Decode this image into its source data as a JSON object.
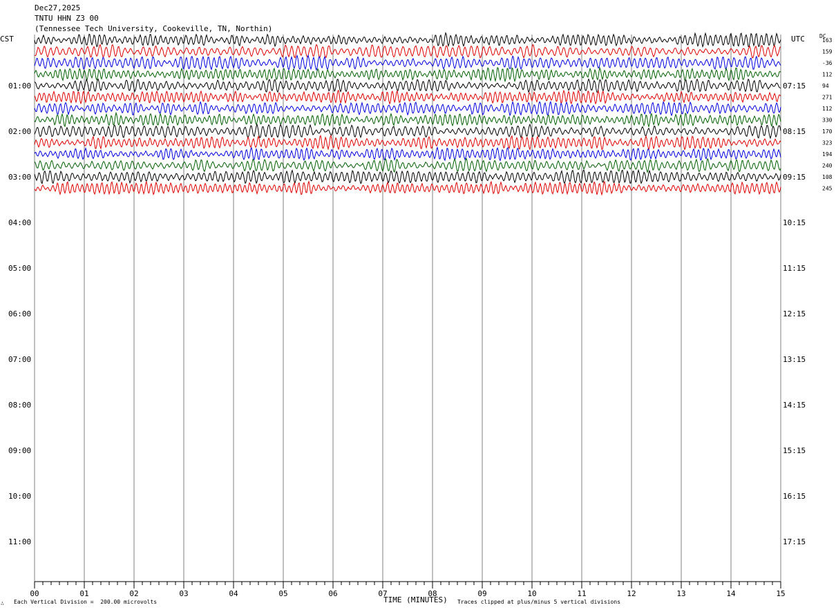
{
  "header": {
    "date": "Dec27,2025",
    "station": "TNTU HHN Z3 00",
    "location": "(Tennessee Tech University, Cookeville, TN, Northin)"
  },
  "labels": {
    "left_zone": "CST",
    "right_zone": "UTC",
    "dc_header": "DC",
    "x_axis_title": "TIME (MINUTES)",
    "scale_note": "Each Vertical Division =  200.00 microvolts",
    "clip_note": "Traces clipped at plus/minus 5 vertical divisions",
    "corner_mark": "∴"
  },
  "colors": {
    "trace_cycle": [
      "#000000",
      "#e00000",
      "#0000e0",
      "#006000"
    ],
    "grid": "#808080",
    "axis": "#000000"
  },
  "chart_data": {
    "type": "line",
    "title": "TNTU HHN Z3 00",
    "xlabel": "TIME (MINUTES)",
    "xlim": [
      0,
      15
    ],
    "x_ticks": [
      "00",
      "01",
      "02",
      "03",
      "04",
      "05",
      "06",
      "07",
      "08",
      "09",
      "10",
      "11",
      "12",
      "13",
      "14",
      "15"
    ],
    "left_hour_labels": [
      "01:00",
      "02:00",
      "03:00",
      "04:00",
      "05:00",
      "06:00",
      "07:00",
      "08:00",
      "09:00",
      "10:00",
      "11:00"
    ],
    "right_hour_labels": [
      "07:15",
      "08:15",
      "09:15",
      "10:15",
      "11:15",
      "12:15",
      "13:15",
      "14:15",
      "15:15",
      "16:15",
      "17:15"
    ],
    "hour_rows": 12,
    "traces_per_hour": 4,
    "trace_count": 14,
    "dc_offsets": [
      "163",
      "159",
      "-36",
      "112",
      "94",
      "271",
      "112",
      "330",
      "170",
      "323",
      "194",
      "240",
      "108",
      "245"
    ],
    "grid": true
  }
}
